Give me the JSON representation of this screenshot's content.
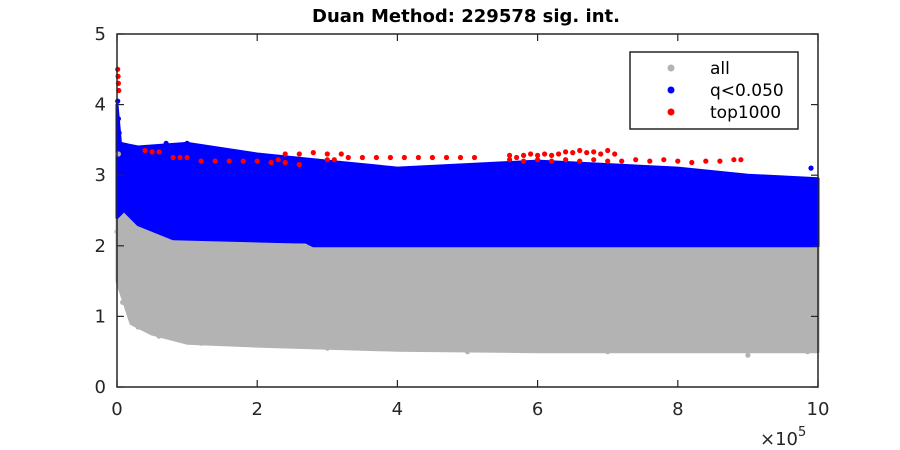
{
  "chart_data": {
    "type": "scatter",
    "title": "Duan Method: 229578 sig. int.",
    "xlabel": "",
    "ylabel": "",
    "xlim": [
      0,
      1000000
    ],
    "ylim": [
      0,
      5
    ],
    "x_ticks": [
      0,
      200000,
      400000,
      600000,
      800000,
      1000000
    ],
    "x_tick_labels": [
      "0",
      "2",
      "4",
      "6",
      "8",
      "10"
    ],
    "x_exponent_label": {
      "base": "×10",
      "power": "5"
    },
    "y_ticks": [
      0,
      1,
      2,
      3,
      4,
      5
    ],
    "y_tick_labels": [
      "0",
      "1",
      "2",
      "3",
      "4",
      "5"
    ],
    "grid": false,
    "legend_position": "top-right",
    "series": [
      {
        "name": "all",
        "color": "#b3b3b3",
        "envelope": {
          "description_upper": [
            [
              0,
              3.5
            ],
            [
              10000,
              2.8
            ],
            [
              20000,
              2.5
            ],
            [
              50000,
              2.3
            ],
            [
              100000,
              2.1
            ],
            [
              270000,
              2.0
            ],
            [
              1000000,
              2.0
            ]
          ],
          "description_lower": [
            [
              0,
              1.5
            ],
            [
              10000,
              1.2
            ],
            [
              20000,
              0.9
            ],
            [
              50000,
              0.75
            ],
            [
              100000,
              0.62
            ],
            [
              200000,
              0.58
            ],
            [
              400000,
              0.52
            ],
            [
              600000,
              0.5
            ],
            [
              800000,
              0.5
            ],
            [
              1000000,
              0.5
            ]
          ]
        },
        "points": [
          [
            0,
            2.2
          ],
          [
            2000,
            3.3
          ],
          [
            5000,
            1.4
          ],
          [
            8000,
            1.2
          ],
          [
            30000,
            0.85
          ],
          [
            60000,
            0.72
          ],
          [
            120000,
            0.62
          ],
          [
            300000,
            0.55
          ],
          [
            500000,
            0.5
          ],
          [
            700000,
            0.5
          ],
          [
            900000,
            0.45
          ],
          [
            985000,
            0.5
          ]
        ]
      },
      {
        "name": "q<0.050",
        "color": "#0000ff",
        "envelope": {
          "description_upper": [
            [
              0,
              4.0
            ],
            [
              5000,
              3.45
            ],
            [
              30000,
              3.4
            ],
            [
              100000,
              3.45
            ],
            [
              200000,
              3.3
            ],
            [
              300000,
              3.2
            ],
            [
              400000,
              3.1
            ],
            [
              600000,
              3.2
            ],
            [
              800000,
              3.1
            ],
            [
              900000,
              3.0
            ],
            [
              1000000,
              2.95
            ]
          ],
          "description_lower": [
            [
              0,
              2.4
            ],
            [
              10000,
              2.5
            ],
            [
              30000,
              2.3
            ],
            [
              80000,
              2.1
            ],
            [
              270000,
              2.05
            ],
            [
              280000,
              2.0
            ],
            [
              1000000,
              2.0
            ]
          ]
        },
        "points": [
          [
            1000,
            4.05
          ],
          [
            2000,
            3.8
          ],
          [
            3000,
            3.6
          ],
          [
            70000,
            3.45
          ],
          [
            100000,
            3.45
          ],
          [
            990000,
            3.1
          ]
        ]
      },
      {
        "name": "top1000",
        "color": "#ff0000",
        "points": [
          [
            1000,
            4.5
          ],
          [
            1500,
            4.4
          ],
          [
            2000,
            4.3
          ],
          [
            2500,
            4.2
          ],
          [
            40000,
            3.35
          ],
          [
            50000,
            3.33
          ],
          [
            60000,
            3.33
          ],
          [
            80000,
            3.25
          ],
          [
            90000,
            3.25
          ],
          [
            100000,
            3.25
          ],
          [
            120000,
            3.2
          ],
          [
            140000,
            3.2
          ],
          [
            160000,
            3.2
          ],
          [
            180000,
            3.2
          ],
          [
            200000,
            3.2
          ],
          [
            220000,
            3.18
          ],
          [
            240000,
            3.18
          ],
          [
            260000,
            3.15
          ],
          [
            230000,
            3.22
          ],
          [
            240000,
            3.3
          ],
          [
            260000,
            3.3
          ],
          [
            280000,
            3.32
          ],
          [
            300000,
            3.3
          ],
          [
            320000,
            3.3
          ],
          [
            300000,
            3.22
          ],
          [
            310000,
            3.22
          ],
          [
            330000,
            3.25
          ],
          [
            350000,
            3.25
          ],
          [
            370000,
            3.25
          ],
          [
            390000,
            3.25
          ],
          [
            410000,
            3.25
          ],
          [
            430000,
            3.25
          ],
          [
            450000,
            3.25
          ],
          [
            470000,
            3.25
          ],
          [
            490000,
            3.25
          ],
          [
            510000,
            3.25
          ],
          [
            560000,
            3.28
          ],
          [
            570000,
            3.25
          ],
          [
            580000,
            3.28
          ],
          [
            590000,
            3.3
          ],
          [
            600000,
            3.28
          ],
          [
            610000,
            3.3
          ],
          [
            620000,
            3.28
          ],
          [
            630000,
            3.3
          ],
          [
            640000,
            3.33
          ],
          [
            650000,
            3.32
          ],
          [
            660000,
            3.35
          ],
          [
            670000,
            3.32
          ],
          [
            680000,
            3.33
          ],
          [
            690000,
            3.3
          ],
          [
            700000,
            3.35
          ],
          [
            710000,
            3.3
          ],
          [
            560000,
            3.22
          ],
          [
            580000,
            3.2
          ],
          [
            600000,
            3.22
          ],
          [
            620000,
            3.2
          ],
          [
            640000,
            3.22
          ],
          [
            660000,
            3.2
          ],
          [
            680000,
            3.22
          ],
          [
            700000,
            3.2
          ],
          [
            720000,
            3.2
          ],
          [
            740000,
            3.22
          ],
          [
            760000,
            3.2
          ],
          [
            780000,
            3.22
          ],
          [
            800000,
            3.2
          ],
          [
            820000,
            3.18
          ],
          [
            840000,
            3.2
          ],
          [
            860000,
            3.2
          ],
          [
            880000,
            3.22
          ],
          [
            890000,
            3.22
          ]
        ]
      }
    ]
  }
}
